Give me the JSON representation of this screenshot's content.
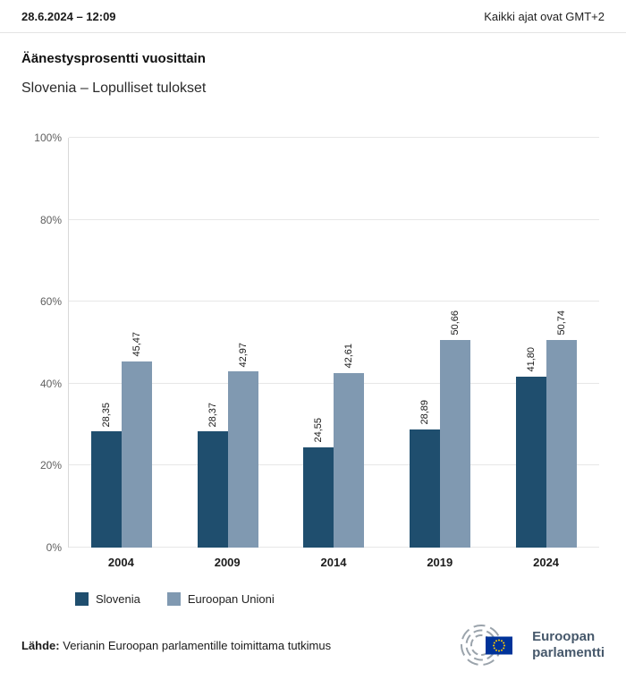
{
  "header": {
    "datetime": "28.6.2024 – 12:09",
    "timezone_note": "Kaikki ajat ovat GMT+2"
  },
  "title": "Äänestysprosentti vuosittain",
  "subtitle": "Slovenia – Lopulliset tulokset",
  "chart_data": {
    "type": "bar",
    "title": "Äänestysprosentti vuosittain",
    "subtitle": "Slovenia – Lopulliset tulokset",
    "categories": [
      "2004",
      "2009",
      "2014",
      "2019",
      "2024"
    ],
    "series": [
      {
        "name": "Slovenia",
        "color": "#1f4e6e",
        "values": [
          28.35,
          28.37,
          24.55,
          28.89,
          41.8
        ],
        "labels": [
          "28,35",
          "28,37",
          "24,55",
          "28,89",
          "41,80"
        ]
      },
      {
        "name": "Euroopan Unioni",
        "color": "#8099b1",
        "values": [
          45.47,
          42.97,
          42.61,
          50.66,
          50.74
        ],
        "labels": [
          "45,47",
          "42,97",
          "42,61",
          "50,66",
          "50,74"
        ]
      }
    ],
    "ylim": [
      0,
      100
    ],
    "yticks": [
      "0%",
      "20%",
      "40%",
      "60%",
      "80%",
      "100%"
    ],
    "grid": true,
    "legend_position": "bottom"
  },
  "legend": [
    {
      "label": "Slovenia",
      "color": "#1f4e6e"
    },
    {
      "label": "Euroopan Unioni",
      "color": "#8099b1"
    }
  ],
  "footer": {
    "source_label": "Lähde:",
    "source_text": "Verianin Euroopan parlamentille toimittama tutkimus"
  },
  "logo": {
    "line1": "Euroopan",
    "line2": "parlamentti"
  }
}
